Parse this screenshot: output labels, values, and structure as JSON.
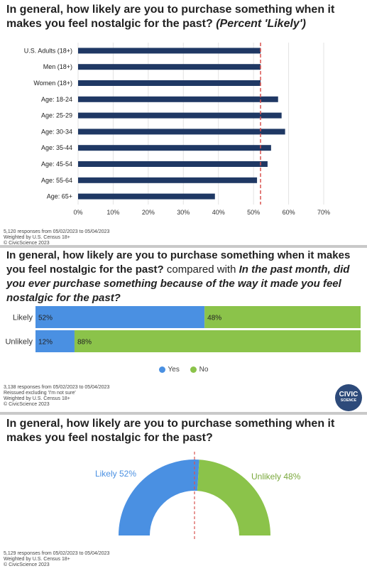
{
  "panel1": {
    "title_main": "In general, how likely are you to purchase something when it makes you feel nostalgic for the past? ",
    "title_italic": "(Percent 'Likely')",
    "footnotes": [
      "5,120 responses from 05/02/2023 to 05/04/2023",
      "Weighted by U.S. Census 18+",
      "© CivicScience 2023"
    ]
  },
  "panel2": {
    "title_main": "In general, how likely are you to purchase something when it makes you feel nostalgic for the past?",
    "title_mid": " compared with ",
    "title_italic": "In the past month, did you ever purchase something because of the way it made you feel nostalgic for the past?",
    "footnotes": [
      "3,138 responses from 05/02/2023 to 05/04/2023",
      "Reissued excluding 'I'm not sure'",
      "Weighted by U.S. Census 18+",
      "© CivicScience 2023"
    ],
    "logo_line1": "CIVIC",
    "logo_line2": "SCIENCE"
  },
  "panel3": {
    "title": "In general, how likely are you to purchase something when it makes you feel nostalgic for the past?",
    "footnotes": [
      "5,129 responses from 05/02/2023 to 05/04/2023",
      "Weighted by U.S. Census 18+",
      "© CivicScience 2023"
    ]
  },
  "colors": {
    "navy": "#1f3864",
    "blue": "#4a90e2",
    "green": "#8bc34a",
    "red_line": "#d9534f"
  },
  "chart_data": [
    {
      "type": "bar",
      "orientation": "horizontal",
      "categories": [
        "U.S. Adults (18+)",
        "Men (18+)",
        "Women (18+)",
        "Age: 18-24",
        "Age: 25-29",
        "Age: 30-34",
        "Age: 35-44",
        "Age: 45-54",
        "Age: 55-64",
        "Age: 65+"
      ],
      "values": [
        52,
        52,
        52,
        57,
        58,
        59,
        55,
        54,
        51,
        39
      ],
      "xlim": [
        0,
        70
      ],
      "xticks": [
        "0%",
        "10%",
        "20%",
        "30%",
        "40%",
        "50%",
        "60%",
        "70%"
      ],
      "reference_line": 52,
      "grid": true
    },
    {
      "type": "bar",
      "orientation": "horizontal",
      "stacked": true,
      "categories": [
        "Likely",
        "Unlikely"
      ],
      "series": [
        {
          "name": "Yes",
          "values": [
            52,
            12
          ],
          "labels": [
            "52%",
            "12%"
          ]
        },
        {
          "name": "No",
          "values": [
            48,
            88
          ],
          "labels": [
            "48%",
            "88%"
          ]
        }
      ],
      "legend": "bottom"
    },
    {
      "type": "pie",
      "subtype": "half-donut",
      "slices": [
        {
          "label": "Likely 52%",
          "value": 52
        },
        {
          "label": "Unlikely 48%",
          "value": 48
        }
      ]
    }
  ]
}
